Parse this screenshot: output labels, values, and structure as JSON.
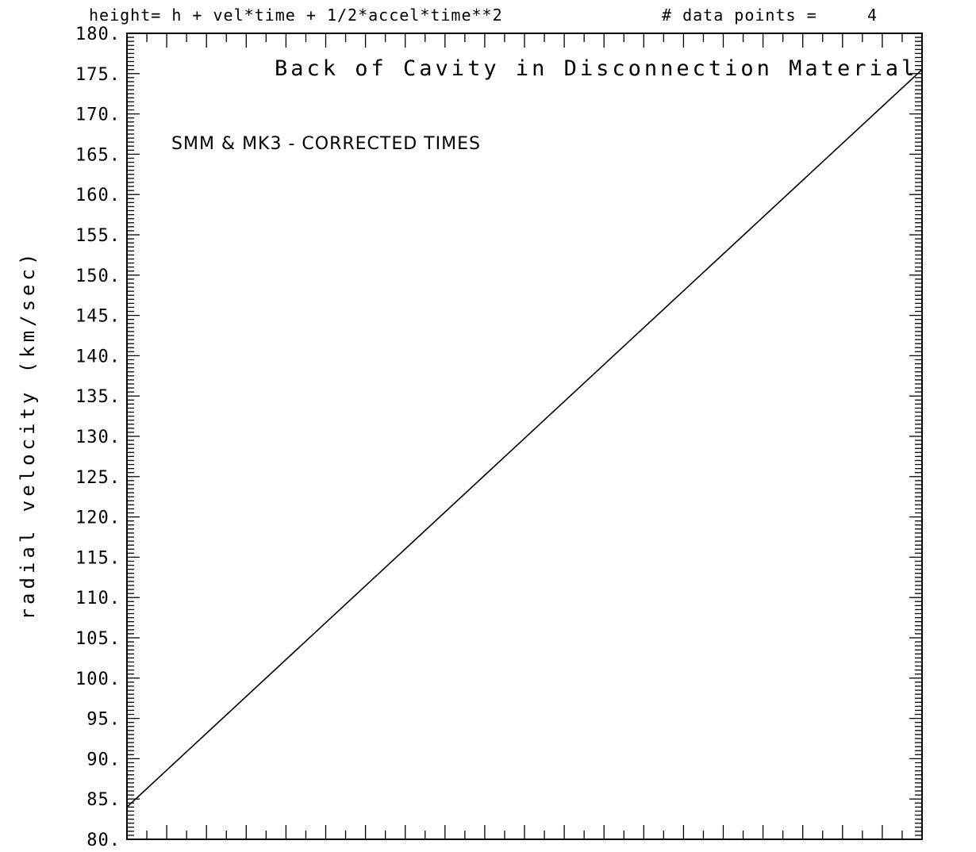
{
  "header": {
    "equation": "height= h + vel*time + 1/2*accel*time**2",
    "points_label": "# data points =",
    "points_value": "4"
  },
  "chart_data": {
    "type": "line",
    "title": "Back of Cavity in Disconnection Material",
    "annotation": "SMM & MK3 - CORRECTED TIMES",
    "ylabel": "radial velocity (km/sec)",
    "xlabel": "",
    "ylim": [
      80,
      180
    ],
    "yticks": [
      "180.",
      "175.",
      "170.",
      "165.",
      "160.",
      "155.",
      "150.",
      "145.",
      "140.",
      "135.",
      "130.",
      "125.",
      "120.",
      "115.",
      "110.",
      "105.",
      "100.",
      "95.",
      "90.",
      "85.",
      "80."
    ],
    "grid": false,
    "series": [
      {
        "x": [
          0,
          1
        ],
        "values": [
          84,
          175.5
        ]
      }
    ]
  },
  "colors": {
    "axis": "#000000",
    "line": "#000000",
    "background": "#ffffff"
  }
}
